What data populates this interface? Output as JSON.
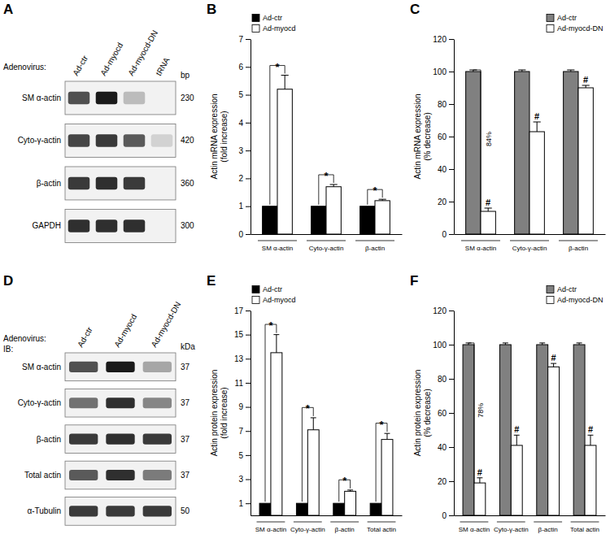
{
  "chart_data": [
    {
      "type": "blot",
      "title": "A",
      "lane_label": "Adenovirus:",
      "size_unit": "bp",
      "categories": [
        "Ad-ctr",
        "Ad-myocd",
        "Ad-myocd-DN",
        "tRNA"
      ],
      "series": [
        {
          "name": "SM α-actin",
          "size": 230,
          "values": [
            0.75,
            1,
            0.25,
            0
          ]
        },
        {
          "name": "Cyto-γ-actin",
          "size": 420,
          "values": [
            0.8,
            0.85,
            0.7,
            0.15
          ]
        },
        {
          "name": "β-actin",
          "size": 360,
          "values": [
            0.85,
            0.9,
            0.85,
            0
          ]
        },
        {
          "name": "GAPDH",
          "size": 300,
          "values": [
            0.9,
            0.9,
            0.9,
            0
          ]
        }
      ]
    },
    {
      "type": "bar",
      "title": "B",
      "y_label": [
        "Actin mRNA expression",
        "(fold increase)"
      ],
      "categories": [
        "SM α-actin",
        "Cyto-γ-actin",
        "β-actin"
      ],
      "series": [
        {
          "name": "Ad-ctr",
          "color": "#000000",
          "values": [
            1,
            1,
            1
          ]
        },
        {
          "name": "Ad-myocd",
          "color": "#ffffff",
          "values": [
            5.2,
            1.7,
            1.2
          ],
          "errors": [
            0.5,
            0.08,
            0.05
          ]
        }
      ],
      "annotations": [
        "*",
        "*",
        "*"
      ],
      "ylim": [
        0,
        7
      ],
      "yticks": [
        0,
        1,
        2,
        3,
        4,
        5,
        6,
        7
      ],
      "legend": "top-left"
    },
    {
      "type": "bar",
      "title": "C",
      "y_label": [
        "Actin mRNA expression",
        "(% decrease)"
      ],
      "categories": [
        "SM α-actin",
        "Cyto-γ-actin",
        "β-actin"
      ],
      "series": [
        {
          "name": "Ad-ctr",
          "color": "#808080",
          "values": [
            100,
            100,
            100
          ],
          "errors": [
            1,
            1,
            1
          ]
        },
        {
          "name": "Ad-myocd-DN",
          "color": "#ffffff",
          "values": [
            14,
            63,
            90
          ],
          "errors": [
            2,
            6,
            1.5
          ]
        }
      ],
      "annotations": [
        "#",
        "#",
        "#"
      ],
      "bracket_label": "84%",
      "ylim": [
        0,
        120
      ],
      "yticks": [
        0,
        20,
        40,
        60,
        80,
        100,
        120
      ],
      "legend": "top-right"
    },
    {
      "type": "blot",
      "title": "D",
      "lane_label": "Adenovirus:",
      "row_label": "IB:",
      "size_unit": "kDa",
      "categories": [
        "Ad-ctr",
        "Ad-myocd",
        "Ad-myocd-DN"
      ],
      "series": [
        {
          "name": "SM α-actin",
          "size": 37,
          "values": [
            0.75,
            1,
            0.35
          ]
        },
        {
          "name": "Cyto-γ-actin",
          "size": 37,
          "values": [
            0.6,
            0.9,
            0.5
          ]
        },
        {
          "name": "β-actin",
          "size": 37,
          "values": [
            0.85,
            0.9,
            0.85
          ]
        },
        {
          "name": "Total actin",
          "size": 37,
          "values": [
            0.7,
            0.9,
            0.55
          ]
        },
        {
          "name": "α-Tubulin",
          "size": 50,
          "values": [
            0.85,
            0.85,
            0.85
          ]
        }
      ]
    },
    {
      "type": "bar",
      "title": "E",
      "y_label": [
        "Actin protein expression",
        "(fold increase)"
      ],
      "categories": [
        "SM α-actin",
        "Cyto-γ-actin",
        "β-actin",
        "Total actin"
      ],
      "series": [
        {
          "name": "Ad-ctr",
          "color": "#000000",
          "values": [
            1,
            1,
            1,
            1
          ]
        },
        {
          "name": "Ad-myocd",
          "color": "#ffffff",
          "values": [
            13.5,
            7.1,
            2.0,
            6.3
          ],
          "errors": [
            1.5,
            1.0,
            0.1,
            0.5
          ]
        }
      ],
      "annotations": [
        "*",
        "*",
        "*",
        "*"
      ],
      "ylim": [
        0,
        17
      ],
      "yticks": [
        1,
        3,
        5,
        7,
        9,
        11,
        13,
        15,
        17
      ],
      "legend": "top-left"
    },
    {
      "type": "bar",
      "title": "F",
      "y_label": [
        "Actin protein expression",
        "(% decrease)"
      ],
      "categories": [
        "SM α-actin",
        "Cyto-γ-actin",
        "β-actin",
        "Total actin"
      ],
      "series": [
        {
          "name": "Ad-ctr",
          "color": "#808080",
          "values": [
            100,
            100,
            100,
            100
          ],
          "errors": [
            1,
            1,
            1,
            1
          ]
        },
        {
          "name": "Ad-myocd-DN",
          "color": "#ffffff",
          "values": [
            19,
            41,
            87,
            41
          ],
          "errors": [
            3,
            6,
            2,
            6
          ]
        }
      ],
      "annotations": [
        "#",
        "#",
        "#",
        "#"
      ],
      "bracket_label": "78%",
      "ylim": [
        0,
        120
      ],
      "yticks": [
        0,
        20,
        40,
        60,
        80,
        100,
        120
      ],
      "legend": "top-right"
    }
  ]
}
